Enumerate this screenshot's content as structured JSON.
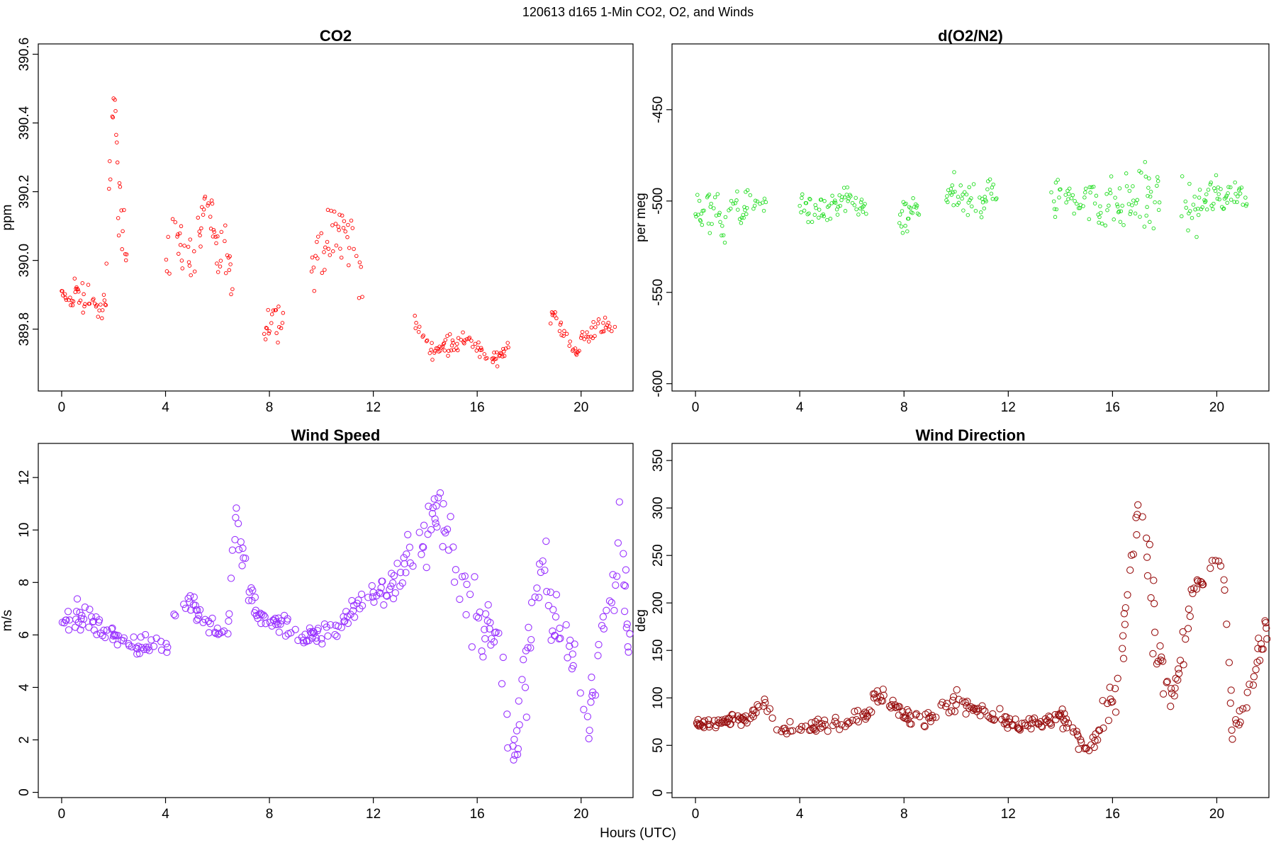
{
  "figure": {
    "suptitle": "120613   d165   1-Min CO2, O2, and Winds",
    "xlabel": "Hours (UTC)"
  },
  "chart_data": [
    {
      "type": "scatter",
      "title": "CO2",
      "xlabel": "",
      "ylabel": "ppm",
      "xlim": [
        -0.9,
        22.0
      ],
      "ylim": [
        389.62,
        390.63
      ],
      "x_ticks": [
        0,
        4,
        8,
        12,
        16,
        20
      ],
      "y_ticks": [
        389.8,
        390.0,
        390.2,
        390.4,
        390.6
      ],
      "y_tick_labels": [
        "389.8",
        "390.0",
        "390.2",
        "390.4",
        "390.6"
      ],
      "color": "#ff0000",
      "marker_size": "small",
      "gap_segments": [
        [
          0.0,
          2.6
        ],
        [
          4.0,
          6.6
        ],
        [
          7.8,
          8.6
        ],
        [
          9.6,
          11.6
        ],
        [
          13.6,
          17.2
        ],
        [
          18.8,
          21.3
        ]
      ],
      "series": [
        {
          "x": [
            0.1,
            0.3,
            0.5,
            0.7,
            0.9,
            1.1,
            1.3,
            1.5,
            1.7,
            1.85,
            1.95,
            2.05,
            2.2,
            2.4,
            2.55,
            4.1,
            4.3,
            4.6,
            4.9,
            5.2,
            5.4,
            5.6,
            6.0,
            6.3,
            6.5,
            7.9,
            8.2,
            8.4,
            8.5,
            9.8,
            10.0,
            10.3,
            10.6,
            10.9,
            11.2,
            11.5,
            13.7,
            14.0,
            14.3,
            14.7,
            15.0,
            15.3,
            15.6,
            15.9,
            16.2,
            16.5,
            16.8,
            17.0,
            18.9,
            19.2,
            19.5,
            19.8,
            20.1,
            20.4,
            20.7,
            21.0,
            21.2
          ],
          "y": [
            389.9,
            389.87,
            389.93,
            389.89,
            389.88,
            389.9,
            389.87,
            389.85,
            389.88,
            390.25,
            390.45,
            390.48,
            390.15,
            390.08,
            390.02,
            390.05,
            390.1,
            390.03,
            390.0,
            390.05,
            390.12,
            390.2,
            390.0,
            390.05,
            389.95,
            389.82,
            389.85,
            389.84,
            389.83,
            390.0,
            390.05,
            390.02,
            390.1,
            390.08,
            390.05,
            389.95,
            389.8,
            389.76,
            389.74,
            389.75,
            389.77,
            389.75,
            389.78,
            389.75,
            389.72,
            389.7,
            389.72,
            389.74,
            389.86,
            389.8,
            389.76,
            389.74,
            389.77,
            389.79,
            389.82,
            389.8,
            389.78
          ],
          "spread": [
            0.02,
            0.03,
            0.04,
            0.05,
            0.04,
            0.04,
            0.03,
            0.03,
            0.04,
            0.1,
            0.07,
            0.04,
            0.08,
            0.08,
            0.05,
            0.12,
            0.08,
            0.08,
            0.07,
            0.08,
            0.09,
            0.07,
            0.09,
            0.07,
            0.05,
            0.06,
            0.05,
            0.05,
            0.05,
            0.08,
            0.07,
            0.1,
            0.1,
            0.1,
            0.08,
            0.06,
            0.03,
            0.02,
            0.02,
            0.02,
            0.03,
            0.02,
            0.02,
            0.02,
            0.03,
            0.02,
            0.02,
            0.02,
            0.03,
            0.03,
            0.02,
            0.02,
            0.03,
            0.03,
            0.03,
            0.03,
            0.03
          ]
        }
      ]
    },
    {
      "type": "scatter",
      "title": "d(O2/N2)",
      "xlabel": "",
      "ylabel": "per meg",
      "xlim": [
        -0.9,
        22.0
      ],
      "ylim": [
        -604,
        -414
      ],
      "x_ticks": [
        0,
        4,
        8,
        12,
        16,
        20
      ],
      "y_ticks": [
        -600,
        -550,
        -500,
        -450
      ],
      "y_tick_labels": [
        "-600",
        "-550",
        "-500",
        "-450"
      ],
      "color": "#22dd22",
      "marker_size": "small",
      "gap_segments": [
        [
          0.0,
          2.7
        ],
        [
          4.0,
          6.6
        ],
        [
          7.8,
          8.6
        ],
        [
          9.6,
          11.6
        ],
        [
          13.6,
          17.8
        ],
        [
          18.6,
          21.3
        ]
      ],
      "series": [
        {
          "x": [
            0.2,
            0.6,
            1.0,
            1.4,
            1.8,
            2.2,
            2.6,
            4.2,
            4.8,
            5.4,
            6.0,
            6.5,
            7.9,
            8.3,
            9.8,
            10.3,
            10.8,
            11.3,
            13.8,
            14.3,
            14.8,
            15.3,
            15.8,
            16.3,
            16.8,
            17.3,
            17.7,
            18.8,
            19.3,
            19.8,
            20.3,
            20.8,
            21.2
          ],
          "y": [
            -505,
            -502,
            -512,
            -503,
            -506,
            -501,
            -504,
            -502,
            -506,
            -503,
            -500,
            -505,
            -512,
            -505,
            -495,
            -503,
            -498,
            -496,
            -500,
            -498,
            -496,
            -503,
            -500,
            -502,
            -500,
            -498,
            -497,
            -505,
            -503,
            -498,
            -496,
            -495,
            -500
          ],
          "spread": [
            10,
            14,
            12,
            10,
            9,
            8,
            6,
            8,
            8,
            9,
            7,
            6,
            10,
            9,
            10,
            10,
            12,
            10,
            12,
            12,
            12,
            16,
            14,
            12,
            15,
            20,
            12,
            14,
            14,
            12,
            10,
            8,
            6
          ]
        }
      ]
    },
    {
      "type": "scatter",
      "title": "Wind Speed",
      "xlabel": "",
      "ylabel": "m/s",
      "xlim": [
        -0.9,
        22.0
      ],
      "ylim": [
        -0.2,
        13.3
      ],
      "x_ticks": [
        0,
        4,
        8,
        12,
        16,
        20
      ],
      "y_ticks": [
        0,
        2,
        4,
        6,
        8,
        10,
        12
      ],
      "y_tick_labels": [
        "0",
        "2",
        "4",
        "6",
        "8",
        "10",
        "12"
      ],
      "color": "#9933ff",
      "marker_size": "large",
      "gap_segments": [
        [
          0.0,
          22.0
        ]
      ],
      "series": [
        {
          "x": [
            0.0,
            0.5,
            1.0,
            1.5,
            2.0,
            2.5,
            3.0,
            3.5,
            4.0,
            4.3,
            4.7,
            5.0,
            5.5,
            6.0,
            6.4,
            6.7,
            7.0,
            7.3,
            7.6,
            8.0,
            8.5,
            9.0,
            9.5,
            10.0,
            10.5,
            11.0,
            11.5,
            12.0,
            12.5,
            13.0,
            13.5,
            14.0,
            14.4,
            14.8,
            15.2,
            15.5,
            16.0,
            16.4,
            16.8,
            17.2,
            17.5,
            17.8,
            18.2,
            18.5,
            18.8,
            19.2,
            19.6,
            19.9,
            20.2,
            20.5,
            20.8,
            21.2,
            21.5,
            21.8,
            22.0
          ],
          "y": [
            6.5,
            6.8,
            6.6,
            6.2,
            6.0,
            5.8,
            5.5,
            5.6,
            5.5,
            6.6,
            7.0,
            7.4,
            6.5,
            6.2,
            6.0,
            10.5,
            8.5,
            7.5,
            6.8,
            6.4,
            6.5,
            6.0,
            5.9,
            6.0,
            6.1,
            6.8,
            7.3,
            7.5,
            7.8,
            8.0,
            9.0,
            9.5,
            11.0,
            10.0,
            8.5,
            8.0,
            7.0,
            6.5,
            5.0,
            3.0,
            1.5,
            4.0,
            7.0,
            8.5,
            7.0,
            6.0,
            5.5,
            3.5,
            2.5,
            4.0,
            6.5,
            7.5,
            9.5,
            6.0,
            4.5
          ],
          "spread": [
            0.3,
            0.4,
            0.4,
            0.3,
            0.3,
            0.3,
            0.4,
            0.4,
            0.4,
            0.5,
            0.5,
            0.5,
            0.4,
            0.4,
            0.4,
            1.0,
            0.9,
            0.7,
            0.5,
            0.4,
            0.4,
            0.4,
            0.4,
            0.4,
            0.4,
            0.5,
            0.6,
            0.6,
            0.6,
            0.8,
            0.9,
            1.0,
            1.2,
            1.2,
            1.5,
            1.5,
            1.5,
            1.5,
            1.5,
            1.5,
            1.0,
            1.5,
            1.5,
            1.2,
            1.2,
            1.0,
            1.0,
            1.0,
            1.0,
            1.2,
            1.2,
            1.2,
            1.5,
            1.5,
            1.0
          ]
        }
      ]
    },
    {
      "type": "scatter",
      "title": "Wind Direction",
      "xlabel": "",
      "ylabel": "deg",
      "xlim": [
        -0.9,
        22.0
      ],
      "ylim": [
        -5,
        368
      ],
      "x_ticks": [
        0,
        4,
        8,
        12,
        16,
        20
      ],
      "y_ticks": [
        0,
        50,
        100,
        150,
        200,
        250,
        300,
        350
      ],
      "y_tick_labels": [
        "0",
        "50",
        "100",
        "150",
        "200",
        "250",
        "300",
        "350"
      ],
      "color": "#991111",
      "marker_size": "large",
      "gap_segments": [
        [
          0.0,
          22.0
        ]
      ],
      "series": [
        {
          "x": [
            0.0,
            0.5,
            1.0,
            1.5,
            2.0,
            2.5,
            2.8,
            3.2,
            3.6,
            4.0,
            4.5,
            5.0,
            5.5,
            6.0,
            6.5,
            7.0,
            7.5,
            8.0,
            8.5,
            9.0,
            9.5,
            10.0,
            10.5,
            11.0,
            11.5,
            12.0,
            12.5,
            13.0,
            13.5,
            14.0,
            14.5,
            15.0,
            15.4,
            15.7,
            16.0,
            16.3,
            16.6,
            16.9,
            17.1,
            17.4,
            17.6,
            17.9,
            18.2,
            18.5,
            18.8,
            19.1,
            19.4,
            19.7,
            20.0,
            20.3,
            20.6,
            20.9,
            21.2,
            21.5,
            21.8,
            22.0
          ],
          "y": [
            72,
            75,
            75,
            78,
            76,
            95,
            92,
            68,
            68,
            66,
            70,
            72,
            74,
            78,
            85,
            100,
            100,
            80,
            80,
            82,
            85,
            95,
            90,
            85,
            78,
            72,
            70,
            72,
            75,
            80,
            65,
            50,
            60,
            80,
            100,
            130,
            200,
            280,
            300,
            240,
            180,
            130,
            100,
            120,
            150,
            220,
            225,
            230,
            240,
            220,
            70,
            80,
            100,
            140,
            170,
            175
          ],
          "spread": [
            5,
            6,
            6,
            6,
            6,
            10,
            8,
            6,
            6,
            6,
            6,
            6,
            8,
            8,
            10,
            12,
            12,
            8,
            8,
            10,
            10,
            12,
            10,
            10,
            8,
            8,
            8,
            8,
            8,
            10,
            10,
            10,
            12,
            15,
            20,
            25,
            40,
            35,
            30,
            60,
            50,
            30,
            20,
            20,
            20,
            10,
            10,
            10,
            15,
            10,
            15,
            20,
            20,
            20,
            15,
            10
          ]
        }
      ]
    }
  ]
}
